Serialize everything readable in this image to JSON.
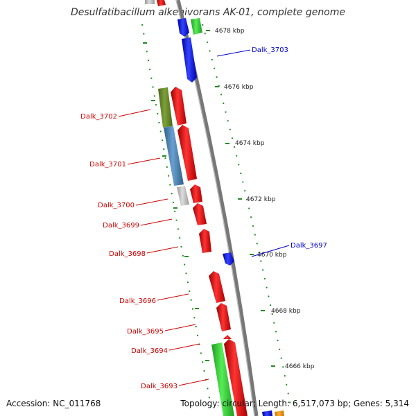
{
  "title": "Desulfatibacillum alkenivorans AK-01, complete genome",
  "footer": {
    "accession": "Accession: NC_011768",
    "summary": "Topology: circular; Length: 6,517,073 bp; Genes: 5,314"
  },
  "scale_ticks": [
    {
      "label": "4678 kbp"
    },
    {
      "label": "4676 kbp"
    },
    {
      "label": "4674 kbp"
    },
    {
      "label": "4672 kbp"
    },
    {
      "label": "4670 kbp"
    },
    {
      "label": "4668 kbp"
    },
    {
      "label": "4666 kbp"
    }
  ],
  "gene_labels": [
    {
      "text": "Dalk_3703",
      "color": "#0000cc"
    },
    {
      "text": "Dalk_3702",
      "color": "#cc0000"
    },
    {
      "text": "Dalk_3701",
      "color": "#cc0000"
    },
    {
      "text": "Dalk_3700",
      "color": "#cc0000"
    },
    {
      "text": "Dalk_3699",
      "color": "#cc0000"
    },
    {
      "text": "Dalk_3698",
      "color": "#cc0000"
    },
    {
      "text": "Dalk_3697",
      "color": "#0000cc"
    },
    {
      "text": "Dalk_3696",
      "color": "#cc0000"
    },
    {
      "text": "Dalk_3695",
      "color": "#cc0000"
    },
    {
      "text": "Dalk_3694",
      "color": "#cc0000"
    },
    {
      "text": "Dalk_3693",
      "color": "#cc0000"
    }
  ],
  "colors": {
    "reverse_strand": "#ff0000",
    "forward_strand": "#0000ff",
    "cog_green": "#33cc33",
    "cog_olive": "#6b8e23",
    "cog_steelblue": "#4682b4",
    "cog_lightgray": "#c0c0c0",
    "cog_orange": "#ff9900",
    "backbone": "#888888",
    "gc_dots": "#228b22"
  }
}
